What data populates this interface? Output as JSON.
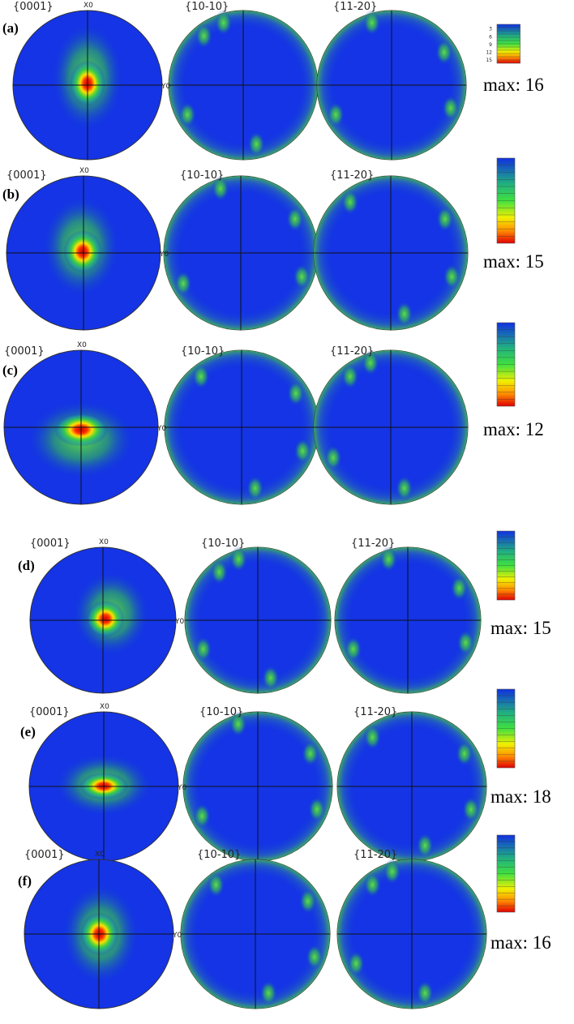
{
  "panels": [
    {
      "label": "(a)",
      "titles": [
        "{0001}",
        "{10-10}",
        "{11-20}"
      ],
      "x_label": "X0",
      "y_label": "Y0",
      "colorbar_ticks": [
        "3",
        "6",
        "9",
        "12",
        "15"
      ],
      "max": "max: 16"
    },
    {
      "label": "(b)",
      "titles": [
        "{0001}",
        "{10-10}",
        "{11-20}"
      ],
      "x_label": "X0",
      "y_label": "Y0",
      "max": "max: 15"
    },
    {
      "label": "(c)",
      "titles": [
        "{0001}",
        "{10-10}",
        "{11-20}"
      ],
      "x_label": "X0",
      "y_label": "Y0",
      "max": "max: 12"
    },
    {
      "label": "(d)",
      "titles": [
        "{0001}",
        "{10-10}",
        "{11-20}"
      ],
      "x_label": "X0",
      "y_label": "Y0",
      "max": "max: 15"
    },
    {
      "label": "(e)",
      "titles": [
        "{0001}",
        "{10-10}",
        "{11-20}"
      ],
      "x_label": "X0",
      "y_label": "Y0",
      "max": "max: 18"
    },
    {
      "label": "(f)",
      "titles": [
        "{0001}",
        "{10-10}",
        "{11-20}"
      ],
      "x_label": "X0",
      "y_label": "Y0",
      "max": "max: 16"
    }
  ]
}
